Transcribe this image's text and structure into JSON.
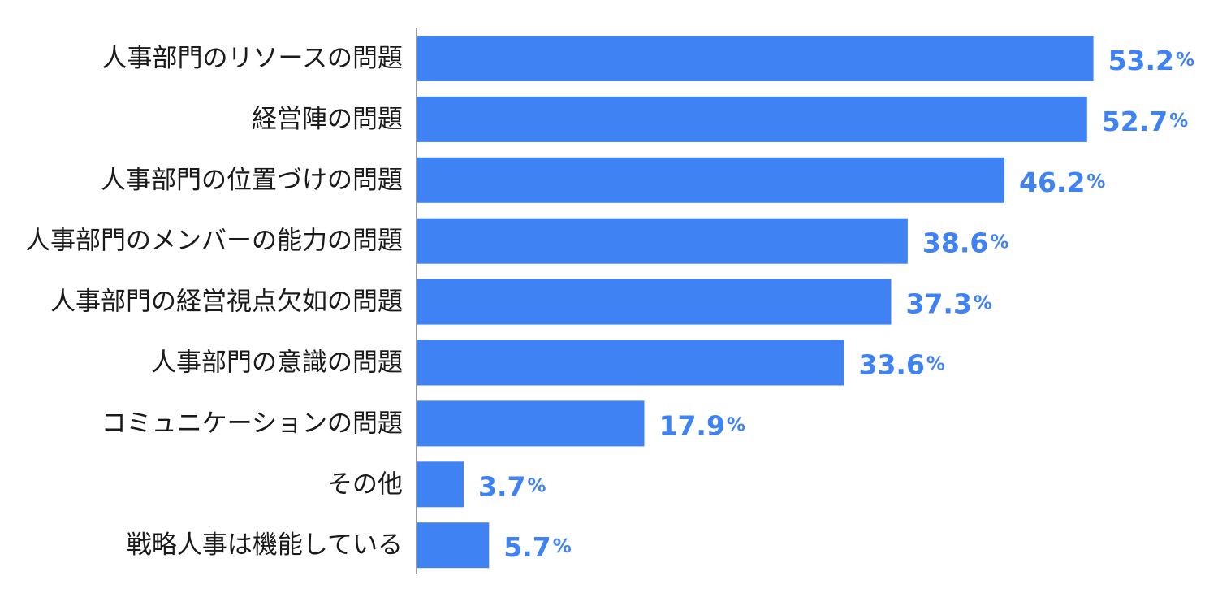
{
  "chart_data": {
    "type": "bar",
    "orientation": "horizontal",
    "categories": [
      "人事部門のリソースの問題",
      "経営陣の問題",
      "人事部門の位置づけの問題",
      "人事部門のメンバーの能力の問題",
      "人事部門の経営視点欠如の問題",
      "人事部門の意識の問題",
      "コミュニケーションの問題",
      "その他",
      "戦略人事は機能している"
    ],
    "values": [
      53.2,
      52.7,
      46.2,
      38.6,
      37.3,
      33.6,
      17.9,
      3.7,
      5.7
    ],
    "value_labels": [
      "53.2",
      "52.7",
      "46.2",
      "38.6",
      "37.3",
      "33.6",
      "17.9",
      "3.7",
      "5.7"
    ],
    "unit": "%",
    "title": "",
    "xlabel": "",
    "ylabel": "",
    "grid": false,
    "legend": "none",
    "colors": {
      "bar": "#3f82f3",
      "value_label": "#3f82f3",
      "category_label": "#1a1a1a",
      "axis": "#333333"
    }
  }
}
